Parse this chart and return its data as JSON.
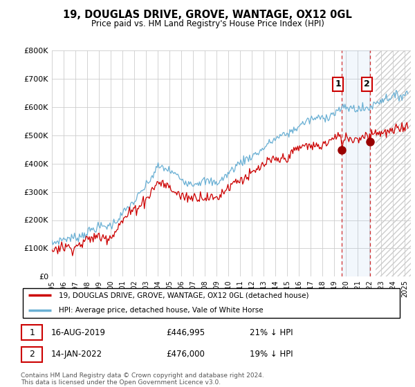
{
  "title": "19, DOUGLAS DRIVE, GROVE, WANTAGE, OX12 0GL",
  "subtitle": "Price paid vs. HM Land Registry's House Price Index (HPI)",
  "legend_line1": "19, DOUGLAS DRIVE, GROVE, WANTAGE, OX12 0GL (detached house)",
  "legend_line2": "HPI: Average price, detached house, Vale of White Horse",
  "annotation1_date": "16-AUG-2019",
  "annotation1_price": "£446,995",
  "annotation1_pct": "21% ↓ HPI",
  "annotation2_date": "14-JAN-2022",
  "annotation2_price": "£476,000",
  "annotation2_pct": "19% ↓ HPI",
  "footer": "Contains HM Land Registry data © Crown copyright and database right 2024.\nThis data is licensed under the Open Government Licence v3.0.",
  "hpi_color": "#6ab0d4",
  "price_color": "#cc0000",
  "ylim": [
    0,
    800000
  ],
  "yticks": [
    0,
    100000,
    200000,
    300000,
    400000,
    500000,
    600000,
    700000,
    800000
  ],
  "ytick_labels": [
    "£0",
    "£100K",
    "£200K",
    "£300K",
    "£400K",
    "£500K",
    "£600K",
    "£700K",
    "£800K"
  ],
  "sale1_x": 2019.625,
  "sale1_y": 446995,
  "sale2_x": 2022.04,
  "sale2_y": 476000,
  "xmin": 1995,
  "xmax": 2025.5
}
